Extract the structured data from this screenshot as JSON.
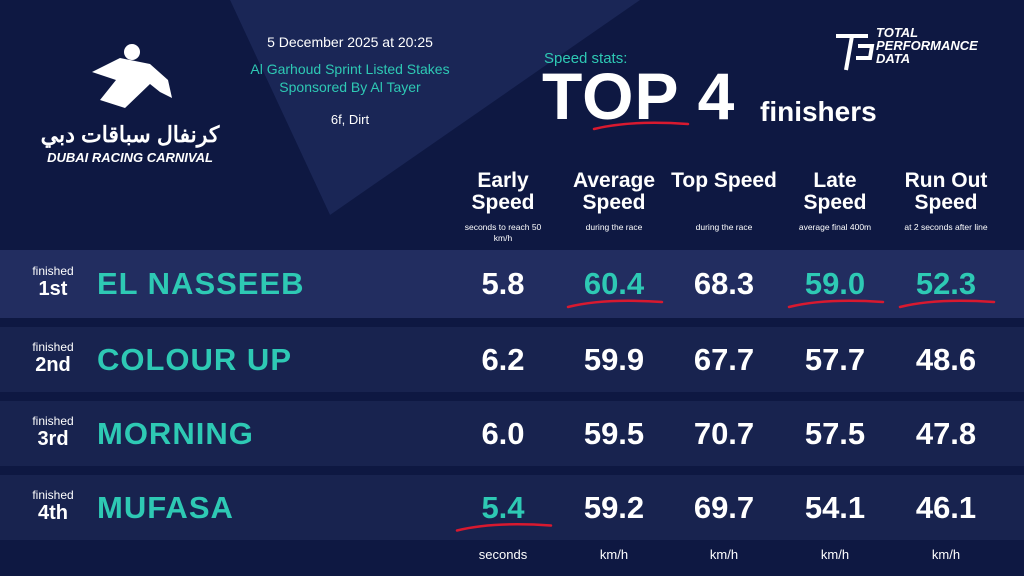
{
  "branding": {
    "arabic": "كرنفال سباقات دبي",
    "name": "DUBAI RACING CARNIVAL"
  },
  "race": {
    "datetime": "5 December 2025 at 20:25",
    "name": "Al Garhoud Sprint Listed Stakes",
    "sponsor": "Sponsored By Al Tayer",
    "conditions": "6f, Dirt"
  },
  "header": {
    "kicker": "Speed stats:",
    "title": "TOP 4",
    "subtitle": "finishers"
  },
  "provider": {
    "lines": [
      "TOTAL",
      "PERFORMANCE",
      "DATA"
    ]
  },
  "columns": [
    {
      "title": "Early Speed",
      "note": "seconds to reach 50 km/h",
      "unit": "seconds"
    },
    {
      "title": "Average Speed",
      "note": "during the race",
      "unit": "km/h"
    },
    {
      "title": "Top Speed",
      "note": "during the race",
      "unit": "km/h"
    },
    {
      "title": "Late Speed",
      "note": "average final 400m",
      "unit": "km/h"
    },
    {
      "title": "Run Out Speed",
      "note": "at 2 seconds after line",
      "unit": "km/h"
    }
  ],
  "rows": [
    {
      "label": "finished",
      "place": "1st",
      "horse": "EL NASSEEB",
      "cells": [
        {
          "value": "5.8",
          "best": false
        },
        {
          "value": "60.4",
          "best": true
        },
        {
          "value": "68.3",
          "best": false
        },
        {
          "value": "59.0",
          "best": true
        },
        {
          "value": "52.3",
          "best": true
        }
      ]
    },
    {
      "label": "finished",
      "place": "2nd",
      "horse": "COLOUR UP",
      "cells": [
        {
          "value": "6.2",
          "best": false
        },
        {
          "value": "59.9",
          "best": false
        },
        {
          "value": "67.7",
          "best": false
        },
        {
          "value": "57.7",
          "best": false
        },
        {
          "value": "48.6",
          "best": false
        }
      ]
    },
    {
      "label": "finished",
      "place": "3rd",
      "horse": "MORNING",
      "cells": [
        {
          "value": "6.0",
          "best": false
        },
        {
          "value": "59.5",
          "best": false
        },
        {
          "value": "70.7",
          "best": false
        },
        {
          "value": "57.5",
          "best": false
        },
        {
          "value": "47.8",
          "best": false
        }
      ]
    },
    {
      "label": "finished",
      "place": "4th",
      "horse": "MUFASA",
      "cells": [
        {
          "value": "5.4",
          "best": true
        },
        {
          "value": "59.2",
          "best": false
        },
        {
          "value": "69.7",
          "best": false
        },
        {
          "value": "54.1",
          "best": false
        },
        {
          "value": "46.1",
          "best": false
        }
      ]
    }
  ]
}
